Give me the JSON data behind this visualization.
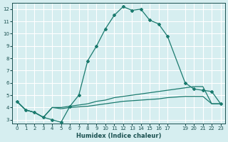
{
  "xlabel": "Humidex (Indice chaleur)",
  "bg_color": "#d6eef0",
  "grid_color": "#ffffff",
  "line_color": "#1a7a6e",
  "xlim": [
    -0.5,
    23.5
  ],
  "ylim": [
    2.7,
    12.5
  ],
  "xticks": [
    0,
    1,
    2,
    3,
    4,
    5,
    6,
    7,
    8,
    9,
    10,
    11,
    12,
    13,
    14,
    15,
    16,
    17,
    19,
    20,
    21,
    22,
    23
  ],
  "xtick_labels": [
    "0",
    "1",
    "2",
    "3",
    "4",
    "5",
    "6",
    "7",
    "8",
    "9",
    "10",
    "11",
    "12",
    "13",
    "14",
    "15",
    "16",
    "17",
    "19",
    "20",
    "21",
    "22",
    "23"
  ],
  "yticks": [
    3,
    4,
    5,
    6,
    7,
    8,
    9,
    10,
    11,
    12
  ],
  "line1_x": [
    0,
    1,
    2,
    3,
    4,
    5,
    6,
    7,
    8,
    9,
    10,
    11,
    12,
    13,
    14,
    15,
    16,
    17,
    19,
    20,
    21,
    22,
    23
  ],
  "line1_y": [
    4.5,
    3.8,
    3.6,
    3.2,
    3.0,
    2.8,
    4.1,
    5.0,
    7.8,
    9.0,
    10.4,
    11.5,
    12.2,
    11.9,
    12.0,
    11.1,
    10.8,
    9.8,
    6.0,
    5.5,
    5.4,
    5.3,
    4.3
  ],
  "line2_x": [
    0,
    1,
    2,
    3,
    4,
    5,
    6,
    7,
    8,
    9,
    10,
    11,
    12,
    13,
    14,
    15,
    16,
    17,
    19,
    20,
    21,
    22,
    23
  ],
  "line2_y": [
    4.5,
    3.8,
    3.6,
    3.2,
    4.0,
    4.0,
    4.1,
    4.2,
    4.3,
    4.5,
    4.6,
    4.8,
    4.9,
    5.0,
    5.1,
    5.2,
    5.3,
    5.4,
    5.6,
    5.7,
    5.7,
    4.3,
    4.3
  ],
  "line3_x": [
    0,
    1,
    2,
    3,
    4,
    5,
    6,
    7,
    8,
    9,
    10,
    11,
    12,
    13,
    14,
    15,
    16,
    17,
    19,
    20,
    21,
    22,
    23
  ],
  "line3_y": [
    4.5,
    3.8,
    3.6,
    3.2,
    4.0,
    3.9,
    4.0,
    4.05,
    4.1,
    4.2,
    4.3,
    4.4,
    4.5,
    4.55,
    4.6,
    4.65,
    4.7,
    4.8,
    4.9,
    4.9,
    4.9,
    4.3,
    4.3
  ]
}
